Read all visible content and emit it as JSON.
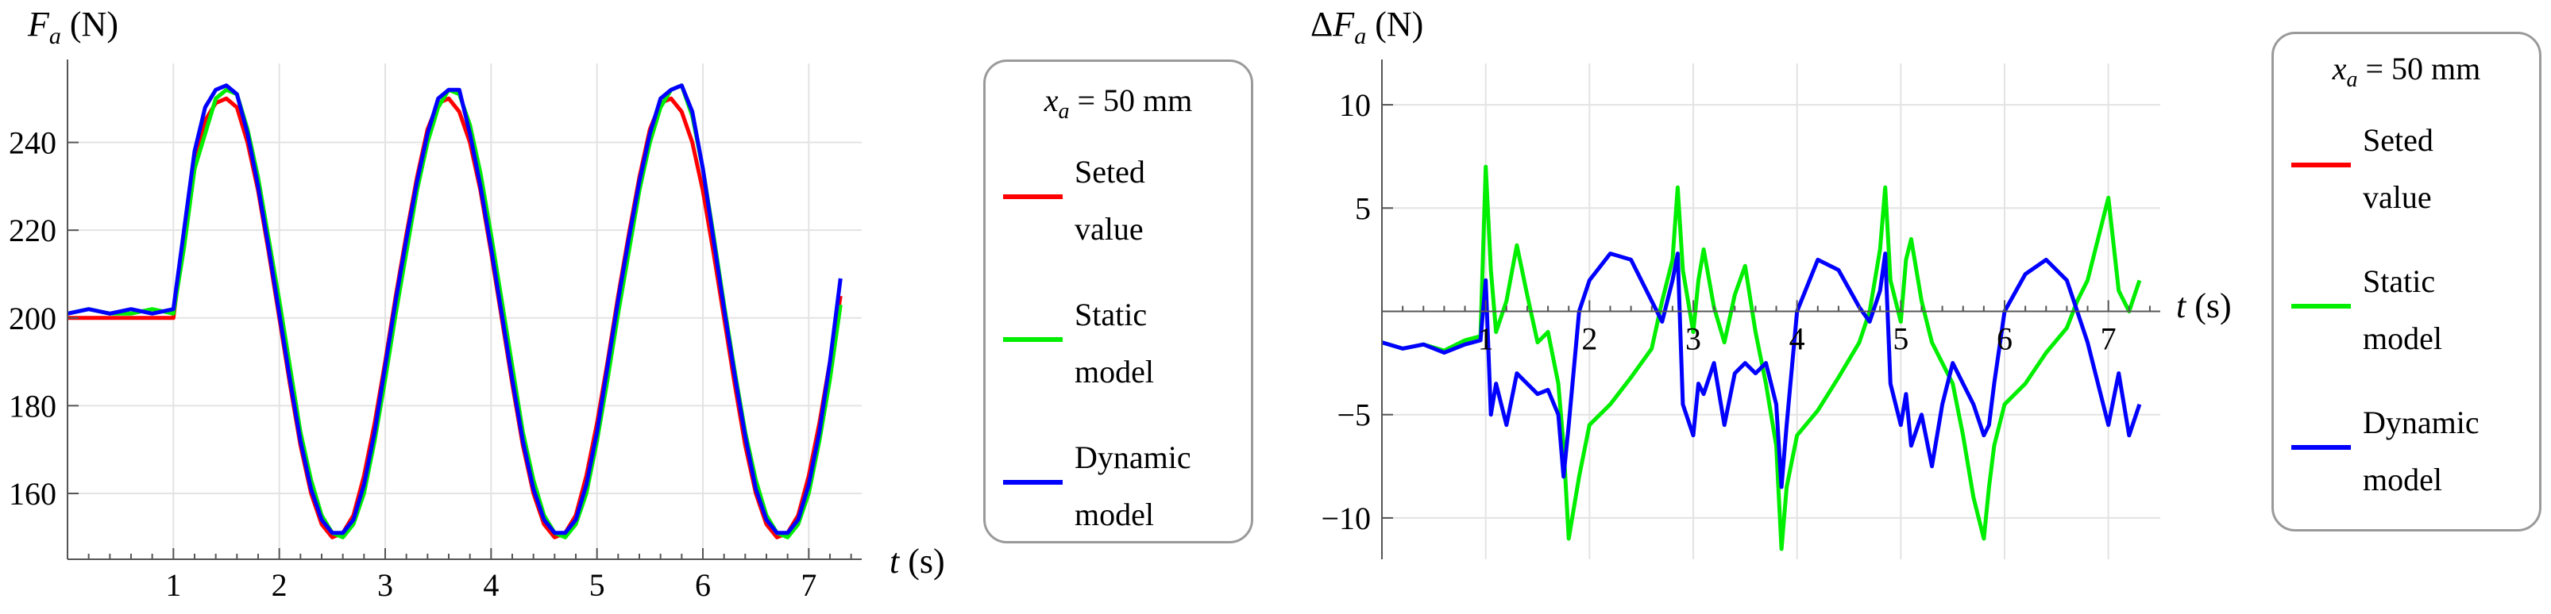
{
  "chart_data": [
    {
      "type": "line",
      "title": "",
      "ylabel_var": "F",
      "ylabel_sub": "a",
      "ylabel_unit": "(N)",
      "xlabel_var": "t",
      "xlabel_unit": "(s)",
      "xlim": [
        0,
        7.5
      ],
      "ylim": [
        145,
        258
      ],
      "x_ticks": [
        1,
        2,
        3,
        4,
        5,
        6,
        7
      ],
      "x_tick_labels": [
        "1",
        "2",
        "3",
        "4",
        "5",
        "6",
        "7"
      ],
      "y_ticks": [
        160,
        180,
        200,
        220,
        240
      ],
      "y_tick_labels": [
        "160",
        "180",
        "200",
        "220",
        "240"
      ],
      "grid": true,
      "legend": {
        "position": "right",
        "title_var": "x",
        "title_sub": "a",
        "title_rest": "= 50 mm",
        "entries": [
          {
            "line1": "Seted",
            "line2": "value"
          },
          {
            "line1": "Static",
            "line2": "model"
          },
          {
            "line1": "Dynamic",
            "line2": "model"
          }
        ]
      },
      "series": [
        {
          "name": "Seted value",
          "color": "#ff0000",
          "x": [
            0,
            0.2,
            0.4,
            0.6,
            0.8,
            1.0,
            1.1,
            1.2,
            1.3,
            1.4,
            1.5,
            1.6,
            1.7,
            1.8,
            1.9,
            2.0,
            2.1,
            2.2,
            2.3,
            2.4,
            2.5,
            2.6,
            2.7,
            2.8,
            2.9,
            3.0,
            3.1,
            3.2,
            3.3,
            3.4,
            3.5,
            3.6,
            3.7,
            3.8,
            3.9,
            4.0,
            4.1,
            4.2,
            4.3,
            4.4,
            4.5,
            4.6,
            4.7,
            4.8,
            4.9,
            5.0,
            5.1,
            5.2,
            5.3,
            5.4,
            5.5,
            5.6,
            5.7,
            5.8,
            5.9,
            6.0,
            6.1,
            6.2,
            6.3,
            6.4,
            6.5,
            6.6,
            6.7,
            6.8,
            6.9,
            7.0,
            7.1,
            7.2,
            7.3
          ],
          "y": [
            200,
            200,
            200,
            200,
            200,
            200,
            219,
            234,
            245,
            249,
            250,
            248,
            240,
            229,
            215,
            200,
            185,
            171,
            160,
            153,
            150,
            151,
            155,
            164,
            176,
            190,
            205,
            219,
            232,
            243,
            249,
            250,
            247,
            240,
            229,
            215,
            200,
            185,
            171,
            160,
            153,
            150,
            151,
            155,
            164,
            176,
            190,
            205,
            219,
            232,
            243,
            249,
            250,
            247,
            240,
            229,
            215,
            200,
            185,
            171,
            160,
            153,
            150,
            151,
            155,
            164,
            176,
            190,
            205
          ]
        },
        {
          "name": "Static model",
          "color": "#00ee00",
          "x": [
            0,
            0.2,
            0.4,
            0.6,
            0.8,
            1.0,
            1.1,
            1.2,
            1.3,
            1.4,
            1.5,
            1.6,
            1.7,
            1.8,
            1.9,
            2.0,
            2.1,
            2.2,
            2.3,
            2.4,
            2.5,
            2.6,
            2.7,
            2.8,
            2.9,
            3.0,
            3.1,
            3.2,
            3.3,
            3.4,
            3.5,
            3.6,
            3.7,
            3.8,
            3.9,
            4.0,
            4.1,
            4.2,
            4.3,
            4.4,
            4.5,
            4.6,
            4.7,
            4.8,
            4.9,
            5.0,
            5.1,
            5.2,
            5.3,
            5.4,
            5.5,
            5.6,
            5.7,
            5.8,
            5.9,
            6.0,
            6.1,
            6.2,
            6.3,
            6.4,
            6.5,
            6.6,
            6.7,
            6.8,
            6.9,
            7.0,
            7.1,
            7.2,
            7.3
          ],
          "y": [
            201,
            202,
            201,
            201,
            202,
            201,
            216,
            234,
            242,
            250,
            252,
            251,
            243,
            232,
            218,
            204,
            189,
            174,
            163,
            155,
            151,
            150,
            153,
            160,
            172,
            186,
            201,
            215,
            229,
            240,
            248,
            252,
            251,
            244,
            233,
            219,
            204,
            189,
            174,
            163,
            155,
            151,
            150,
            153,
            160,
            172,
            186,
            201,
            215,
            229,
            240,
            248,
            252,
            253,
            246,
            234,
            219,
            203,
            188,
            174,
            163,
            155,
            151,
            150,
            153,
            160,
            172,
            186,
            203
          ]
        },
        {
          "name": "Dynamic model",
          "color": "#0000ff",
          "x": [
            0,
            0.2,
            0.4,
            0.6,
            0.8,
            1.0,
            1.1,
            1.2,
            1.3,
            1.4,
            1.5,
            1.6,
            1.7,
            1.8,
            1.9,
            2.0,
            2.1,
            2.2,
            2.3,
            2.4,
            2.5,
            2.6,
            2.7,
            2.8,
            2.9,
            3.0,
            3.1,
            3.2,
            3.3,
            3.4,
            3.5,
            3.6,
            3.7,
            3.8,
            3.9,
            4.0,
            4.1,
            4.2,
            4.3,
            4.4,
            4.5,
            4.6,
            4.7,
            4.8,
            4.9,
            5.0,
            5.1,
            5.2,
            5.3,
            5.4,
            5.5,
            5.6,
            5.7,
            5.8,
            5.9,
            6.0,
            6.1,
            6.2,
            6.3,
            6.4,
            6.5,
            6.6,
            6.7,
            6.8,
            6.9,
            7.0,
            7.1,
            7.2,
            7.3
          ],
          "y": [
            201,
            202,
            201,
            202,
            201,
            202,
            220,
            238,
            248,
            252,
            253,
            251,
            242,
            230,
            216,
            201,
            186,
            172,
            161,
            154,
            151,
            151,
            154,
            162,
            174,
            189,
            204,
            218,
            231,
            242,
            250,
            252,
            252,
            242,
            230,
            216,
            201,
            186,
            172,
            161,
            154,
            151,
            151,
            154,
            162,
            174,
            189,
            204,
            218,
            231,
            242,
            250,
            252,
            253,
            247,
            234,
            218,
            202,
            187,
            173,
            161,
            154,
            151,
            151,
            154,
            162,
            174,
            190,
            209
          ]
        }
      ]
    },
    {
      "type": "line",
      "title": "",
      "ylabel_var": "F",
      "ylabel_sub": "a",
      "ylabel_prefix": "Δ",
      "ylabel_unit": "(N)",
      "xlabel_var": "t",
      "xlabel_unit": "(s)",
      "xlim": [
        0,
        7.5
      ],
      "ylim": [
        -12,
        12
      ],
      "x_ticks": [
        1,
        2,
        3,
        4,
        5,
        6,
        7
      ],
      "x_tick_labels": [
        "1",
        "2",
        "3",
        "4",
        "5",
        "6",
        "7"
      ],
      "y_ticks": [
        -10,
        -5,
        5,
        10
      ],
      "y_tick_labels": [
        "−10",
        "−5",
        "5",
        "10"
      ],
      "grid": true,
      "legend": {
        "position": "right",
        "title_var": "x",
        "title_sub": "a",
        "title_rest": "= 50 mm",
        "entries": [
          {
            "line1": "Seted",
            "line2": "value"
          },
          {
            "line1": "Static",
            "line2": "model"
          },
          {
            "line1": "Dynamic",
            "line2": "model"
          }
        ]
      },
      "series": [
        {
          "name": "Static model",
          "color": "#00ee00",
          "x": [
            0,
            0.2,
            0.4,
            0.6,
            0.8,
            0.95,
            1.0,
            1.05,
            1.1,
            1.2,
            1.3,
            1.4,
            1.5,
            1.6,
            1.7,
            1.75,
            1.8,
            1.9,
            2.0,
            2.2,
            2.4,
            2.6,
            2.7,
            2.8,
            2.85,
            2.9,
            3.0,
            3.05,
            3.1,
            3.2,
            3.3,
            3.4,
            3.5,
            3.6,
            3.7,
            3.8,
            3.85,
            3.9,
            4.0,
            4.2,
            4.4,
            4.6,
            4.7,
            4.8,
            4.85,
            4.9,
            5.0,
            5.05,
            5.1,
            5.2,
            5.3,
            5.4,
            5.5,
            5.6,
            5.7,
            5.8,
            5.85,
            5.9,
            6.0,
            6.2,
            6.4,
            6.6,
            6.7,
            6.8,
            6.9,
            7.0,
            7.1,
            7.2,
            7.3
          ],
          "y": [
            -1.5,
            -1.8,
            -1.6,
            -1.9,
            -1.4,
            -1.2,
            7.0,
            2.0,
            -1.0,
            0.5,
            3.2,
            0.8,
            -1.5,
            -1.0,
            -3.5,
            -6.5,
            -11.0,
            -8.0,
            -5.5,
            -4.5,
            -3.2,
            -1.8,
            0.5,
            2.5,
            6.0,
            2.0,
            -1.0,
            1.5,
            3.0,
            0.2,
            -1.5,
            0.8,
            2.2,
            -1.0,
            -3.5,
            -6.5,
            -11.5,
            -8.5,
            -6.0,
            -4.8,
            -3.2,
            -1.5,
            0.0,
            3.0,
            6.0,
            1.5,
            -0.5,
            2.5,
            3.5,
            0.5,
            -1.5,
            -2.5,
            -3.5,
            -6.0,
            -9.0,
            -11.0,
            -8.5,
            -6.5,
            -4.5,
            -3.5,
            -2.0,
            -0.8,
            0.5,
            1.5,
            3.5,
            5.5,
            1.0,
            0.0,
            1.5
          ]
        },
        {
          "name": "Dynamic model",
          "color": "#0000ff",
          "x": [
            0,
            0.2,
            0.4,
            0.6,
            0.8,
            0.95,
            1.0,
            1.05,
            1.1,
            1.2,
            1.3,
            1.4,
            1.5,
            1.6,
            1.7,
            1.75,
            1.8,
            1.9,
            2.0,
            2.2,
            2.4,
            2.6,
            2.7,
            2.8,
            2.85,
            2.9,
            3.0,
            3.05,
            3.1,
            3.2,
            3.3,
            3.4,
            3.5,
            3.6,
            3.7,
            3.8,
            3.85,
            3.9,
            4.0,
            4.2,
            4.4,
            4.6,
            4.7,
            4.8,
            4.85,
            4.9,
            5.0,
            5.05,
            5.1,
            5.2,
            5.3,
            5.4,
            5.5,
            5.6,
            5.7,
            5.8,
            5.85,
            5.9,
            6.0,
            6.2,
            6.4,
            6.6,
            6.7,
            6.8,
            6.9,
            7.0,
            7.1,
            7.2,
            7.3
          ],
          "y": [
            -1.5,
            -1.8,
            -1.6,
            -2.0,
            -1.6,
            -1.4,
            1.5,
            -5.0,
            -3.5,
            -5.5,
            -3.0,
            -3.5,
            -4.0,
            -3.8,
            -5.0,
            -8.0,
            -5.5,
            0.0,
            1.5,
            2.8,
            2.5,
            0.5,
            -0.5,
            1.5,
            2.8,
            -4.5,
            -6.0,
            -3.5,
            -4.0,
            -2.5,
            -5.5,
            -3.0,
            -2.5,
            -3.0,
            -2.5,
            -4.5,
            -8.5,
            -5.5,
            0.0,
            2.5,
            2.0,
            0.2,
            -0.5,
            1.0,
            2.8,
            -3.5,
            -5.5,
            -4.0,
            -6.5,
            -5.0,
            -7.5,
            -4.5,
            -2.5,
            -3.5,
            -4.5,
            -6.0,
            -5.5,
            -3.5,
            0.0,
            1.8,
            2.5,
            1.5,
            0.0,
            -1.5,
            -3.5,
            -5.5,
            -3.0,
            -6.0,
            -4.5
          ]
        }
      ]
    }
  ]
}
